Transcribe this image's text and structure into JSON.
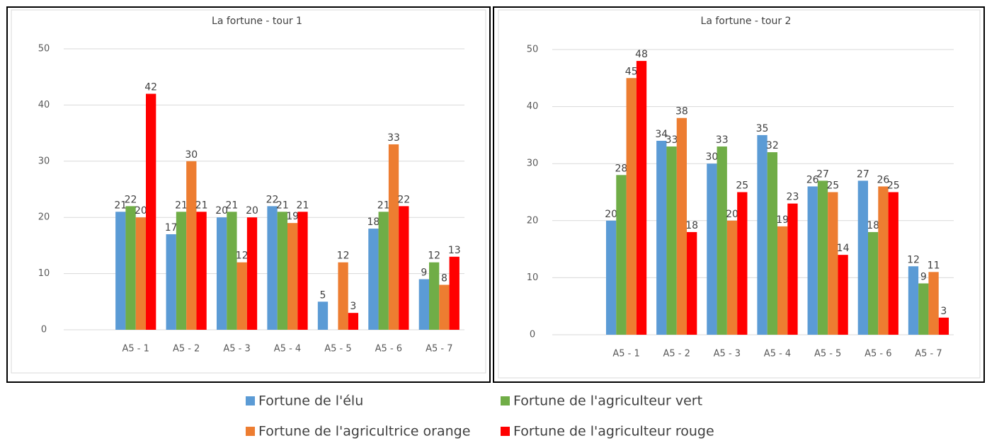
{
  "chart_data": [
    {
      "type": "bar",
      "title": "La fortune - tour 1",
      "categories": [
        "A5 - 1",
        "A5 - 2",
        "A5 - 3",
        "A5 - 4",
        "A5 - 5",
        "A5 - 6",
        "A5 - 7"
      ],
      "series": [
        {
          "name": "Fortune de l'élu",
          "color": "#5b9bd5",
          "values": [
            21,
            17,
            20,
            22,
            5,
            18,
            9
          ]
        },
        {
          "name": "Fortune de l'agriculteur vert",
          "color": "#70ad47",
          "values": [
            22,
            21,
            21,
            21,
            null,
            21,
            12
          ]
        },
        {
          "name": "Fortune de l'agricultrice orange",
          "color": "#ed7d31",
          "values": [
            20,
            30,
            12,
            19,
            12,
            33,
            8
          ]
        },
        {
          "name": "Fortune de l'agriculteur rouge",
          "color": "#ff0000",
          "values": [
            42,
            21,
            20,
            21,
            3,
            22,
            13
          ]
        }
      ],
      "ylim": [
        0,
        50
      ],
      "yticks": [
        0,
        10,
        20,
        30,
        40,
        50
      ],
      "grid": true
    },
    {
      "type": "bar",
      "title": "La fortune - tour 2",
      "categories": [
        "A5 - 1",
        "A5 - 2",
        "A5 - 3",
        "A5 - 4",
        "A5 - 5",
        "A5 - 6",
        "A5 - 7"
      ],
      "series": [
        {
          "color": "#5b9bd5",
          "values": [
            20,
            34,
            30,
            35,
            26,
            27,
            12
          ]
        },
        {
          "color": "#70ad47",
          "values": [
            28,
            33,
            33,
            32,
            27,
            18,
            9
          ]
        },
        {
          "color": "#ed7d31",
          "values": [
            45,
            38,
            20,
            19,
            25,
            26,
            11
          ]
        },
        {
          "color": "#ff0000",
          "values": [
            48,
            18,
            25,
            23,
            14,
            25,
            3
          ]
        }
      ],
      "ylim": [
        0,
        50
      ],
      "yticks": [
        0,
        10,
        20,
        30,
        40,
        50
      ],
      "grid": true
    }
  ]
}
